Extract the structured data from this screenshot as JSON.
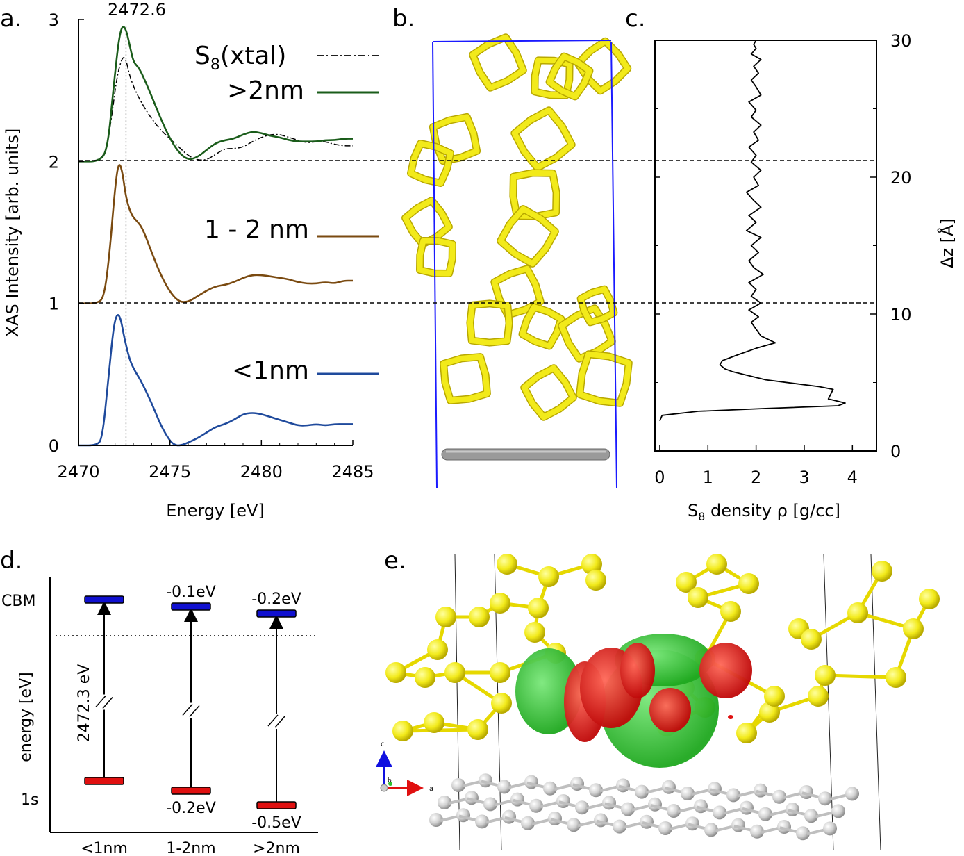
{
  "panels": {
    "a": "a.",
    "b": "b.",
    "c": "c.",
    "d": "d.",
    "e": "e."
  },
  "colors": {
    "xtal": "#000000",
    "gt2nm": "#1a5c1a",
    "nm1to2": "#7a4a10",
    "lt1nm": "#1f4a9c",
    "sulfur": "#f2ea1a",
    "cell": "#1a1aff",
    "cbm": "#1010d0",
    "core": "#e01010",
    "orbital_pos": "#2cc52c",
    "orbital_neg": "#d01818",
    "carbon": "#c8c8c8"
  },
  "chart_data": [
    {
      "type": "line",
      "panel": "a",
      "title": "",
      "peak_annotation": "2472.6",
      "peak_x": 2472.6,
      "xlabel": "Energy [eV]",
      "ylabel": "XAS Intensity [arb. units]",
      "xlim": [
        2470,
        2485
      ],
      "ylim": [
        0,
        3
      ],
      "xticks": [
        2470,
        2475,
        2480,
        2485
      ],
      "xtick_labels": [
        "2470",
        "2475",
        "2480",
        "2485"
      ],
      "yticks": [
        0,
        1,
        2,
        3
      ],
      "ytick_labels": [
        "0",
        "1",
        "2",
        "3"
      ],
      "hlines": [
        1,
        2
      ],
      "legend": [
        {
          "name": "S8(xtal)",
          "base": "S",
          "sub": "8",
          "rest": "(xtal)",
          "style": "dashdot"
        },
        {
          "name": ">2nm",
          "style": "solid"
        },
        {
          "name": "1 - 2 nm",
          "style": "solid"
        },
        {
          "name": "<1nm",
          "style": "solid"
        }
      ],
      "series": [
        {
          "name": "S8(xtal)",
          "x": [
            2470,
            2471.0,
            2471.5,
            2471.8,
            2472.1,
            2472.4,
            2472.6,
            2472.8,
            2473.1,
            2473.5,
            2474,
            2474.5,
            2475,
            2475.5,
            2476,
            2476.5,
            2477,
            2477.5,
            2478,
            2478.5,
            2479,
            2479.5,
            2480,
            2480.5,
            2481,
            2481.5,
            2482,
            2482.5,
            2483,
            2483.5,
            2484,
            2484.5,
            2485
          ],
          "y": [
            2.0,
            2.0,
            2.06,
            2.3,
            2.6,
            2.74,
            2.72,
            2.6,
            2.5,
            2.4,
            2.3,
            2.22,
            2.16,
            2.1,
            2.04,
            2.01,
            2.01,
            2.05,
            2.09,
            2.09,
            2.1,
            2.14,
            2.17,
            2.19,
            2.19,
            2.17,
            2.15,
            2.13,
            2.14,
            2.14,
            2.12,
            2.11,
            2.11
          ]
        },
        {
          "name": ">2nm",
          "x": [
            2470,
            2471.2,
            2471.6,
            2471.9,
            2472.2,
            2472.4,
            2472.6,
            2472.8,
            2473.0,
            2473.3,
            2473.6,
            2474,
            2474.5,
            2475,
            2475.5,
            2476,
            2476.5,
            2477,
            2477.5,
            2478,
            2478.5,
            2479,
            2479.5,
            2480,
            2480.5,
            2481,
            2481.5,
            2482,
            2482.5,
            2483,
            2483.5,
            2484,
            2484.5,
            2485
          ],
          "y": [
            2.0,
            2.0,
            2.1,
            2.5,
            2.86,
            2.96,
            2.93,
            2.82,
            2.7,
            2.66,
            2.58,
            2.46,
            2.3,
            2.16,
            2.06,
            2.01,
            2.03,
            2.08,
            2.13,
            2.15,
            2.16,
            2.19,
            2.21,
            2.2,
            2.18,
            2.17,
            2.15,
            2.14,
            2.14,
            2.14,
            2.15,
            2.15,
            2.16,
            2.16
          ]
        },
        {
          "name": "1 - 2 nm",
          "x": [
            2470,
            2471.0,
            2471.4,
            2471.7,
            2472.0,
            2472.2,
            2472.4,
            2472.6,
            2472.9,
            2473.2,
            2473.5,
            2474,
            2474.5,
            2475,
            2475.5,
            2476,
            2476.5,
            2477,
            2477.5,
            2478,
            2478.5,
            2479,
            2479.5,
            2480,
            2480.5,
            2481,
            2481.5,
            2482,
            2482.5,
            2483,
            2483.5,
            2484,
            2484.5,
            2485
          ],
          "y": [
            1.0,
            1.0,
            1.04,
            1.35,
            1.82,
            2.0,
            1.93,
            1.74,
            1.62,
            1.58,
            1.53,
            1.36,
            1.2,
            1.08,
            1.01,
            1.01,
            1.05,
            1.09,
            1.12,
            1.13,
            1.15,
            1.18,
            1.2,
            1.2,
            1.19,
            1.18,
            1.17,
            1.15,
            1.14,
            1.14,
            1.15,
            1.14,
            1.16,
            1.16
          ]
        },
        {
          "name": "<1nm",
          "x": [
            2470,
            2471.0,
            2471.3,
            2471.6,
            2471.9,
            2472.1,
            2472.3,
            2472.5,
            2472.8,
            2473.1,
            2473.4,
            2474,
            2474.5,
            2475,
            2475.3,
            2475.6,
            2476,
            2476.5,
            2477,
            2477.5,
            2478,
            2478.5,
            2479,
            2479.5,
            2480,
            2480.5,
            2481,
            2481.5,
            2482,
            2482.5,
            2483,
            2483.5,
            2484,
            2484.5,
            2485
          ],
          "y": [
            0.0,
            0.0,
            0.05,
            0.42,
            0.82,
            0.93,
            0.9,
            0.76,
            0.6,
            0.52,
            0.46,
            0.3,
            0.14,
            0.03,
            0.0,
            0.0,
            0.02,
            0.05,
            0.09,
            0.13,
            0.15,
            0.18,
            0.22,
            0.23,
            0.22,
            0.2,
            0.18,
            0.16,
            0.14,
            0.14,
            0.15,
            0.14,
            0.15,
            0.15,
            0.15
          ]
        }
      ]
    },
    {
      "type": "line",
      "panel": "c",
      "title": "",
      "xlabel": "S8 density ρ [g/cc]",
      "xlabel_base": "S",
      "xlabel_sub": "8",
      "xlabel_rest": " density ρ [g/cc]",
      "ylabel": "Δz [Å]",
      "xlim": [
        -0.1,
        4.5
      ],
      "ylim": [
        0,
        30
      ],
      "xticks": [
        0,
        1,
        2,
        3,
        4
      ],
      "xtick_labels": [
        "0",
        "1",
        "2",
        "3",
        "4"
      ],
      "yticks": [
        0,
        10,
        20,
        30
      ],
      "ytick_labels": [
        "0",
        "10",
        "20",
        "30"
      ],
      "hlines": [
        10.3,
        21.0
      ],
      "series": [
        {
          "name": "",
          "x": [
            0.0,
            0.05,
            0.8,
            2.2,
            3.7,
            3.85,
            3.5,
            3.6,
            3.3,
            2.2,
            1.5,
            1.35,
            1.25,
            1.3,
            1.6,
            2.0,
            2.4,
            2.1,
            2.0,
            1.9,
            2.05,
            1.85,
            2.1,
            1.9,
            2.0,
            1.85,
            2.15,
            1.95,
            1.85,
            2.05,
            1.9,
            2.1,
            1.8,
            2.0,
            1.85,
            2.1,
            1.95,
            1.8,
            2.05,
            1.95,
            2.1,
            1.9,
            2.0,
            1.85,
            2.05,
            1.95,
            2.1,
            1.9,
            2.0,
            1.85,
            2.1,
            2.0,
            1.9,
            2.05,
            1.95,
            2.1,
            1.9,
            2.0,
            1.95,
            2.0
          ],
          "y": [
            2.2,
            2.6,
            2.9,
            3.1,
            3.3,
            3.5,
            3.8,
            4.5,
            4.7,
            5.2,
            5.8,
            6.0,
            6.3,
            6.6,
            7.0,
            7.5,
            7.9,
            8.4,
            8.9,
            9.4,
            9.8,
            10.3,
            10.8,
            11.3,
            11.8,
            12.3,
            12.9,
            13.4,
            13.9,
            14.5,
            15.0,
            15.6,
            16.1,
            16.7,
            17.2,
            17.8,
            18.3,
            18.9,
            19.4,
            20.0,
            20.5,
            21.1,
            21.6,
            22.2,
            22.7,
            23.3,
            23.8,
            24.4,
            24.9,
            25.5,
            26.0,
            26.6,
            27.1,
            27.6,
            28.1,
            28.6,
            29.0,
            29.4,
            29.7,
            30.0
          ]
        }
      ]
    },
    {
      "type": "diagram",
      "panel": "d",
      "ylabel": "energy [eV]",
      "left_labels": [
        "CBM",
        "1s"
      ],
      "transition_label": "2472.3 eV",
      "columns": [
        {
          "name": "<1nm",
          "cbm_shift": "",
          "core_shift": "",
          "cbm_level": 0.0,
          "core_level": 0.0
        },
        {
          "name": "1-2nm",
          "cbm_shift": "-0.1eV",
          "core_shift": "-0.2eV",
          "cbm_level": -0.1,
          "core_level": -0.2
        },
        {
          "name": ">2nm",
          "cbm_shift": "-0.2eV",
          "core_shift": "-0.5eV",
          "cbm_level": -0.2,
          "core_level": -0.5
        }
      ]
    }
  ],
  "panel_e": {
    "axis_labels": [
      "c",
      "b",
      "a"
    ]
  }
}
